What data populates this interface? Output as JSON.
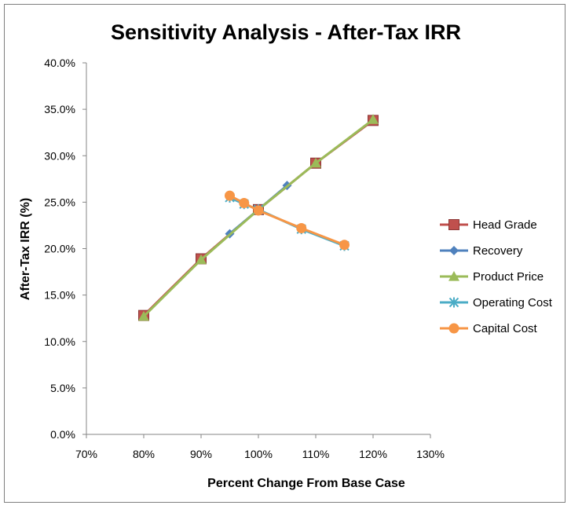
{
  "chart_data": {
    "type": "line",
    "title": "Sensitivity Analysis - After-Tax IRR",
    "xlabel": "Percent Change From Base Case",
    "ylabel": "After-Tax IRR (%)",
    "xlim": [
      70,
      130
    ],
    "ylim": [
      0,
      40
    ],
    "x_ticks": [
      70,
      80,
      90,
      100,
      110,
      120,
      130
    ],
    "x_tick_labels": [
      "70%",
      "80%",
      "90%",
      "100%",
      "110%",
      "120%",
      "130%"
    ],
    "y_ticks": [
      0,
      5,
      10,
      15,
      20,
      25,
      30,
      35,
      40
    ],
    "y_tick_labels": [
      "0.0%",
      "5.0%",
      "10.0%",
      "15.0%",
      "20.0%",
      "25.0%",
      "30.0%",
      "35.0%",
      "40.0%"
    ],
    "grid": false,
    "legend_position": "right",
    "series": [
      {
        "name": "Head Grade",
        "color": "#c0504d",
        "marker": "square",
        "x": [
          80,
          90,
          100,
          110,
          120
        ],
        "y": [
          12.8,
          18.9,
          24.2,
          29.2,
          33.8
        ]
      },
      {
        "name": "Recovery",
        "color": "#4f81bd",
        "marker": "diamond",
        "x": [
          95,
          100,
          105
        ],
        "y": [
          21.6,
          24.2,
          26.8
        ]
      },
      {
        "name": "Product Price",
        "color": "#9bbb59",
        "marker": "triangle",
        "x": [
          80,
          90,
          100,
          110,
          120
        ],
        "y": [
          12.7,
          18.8,
          24.2,
          29.2,
          33.9
        ]
      },
      {
        "name": "Operating Cost",
        "color": "#4bacc6",
        "marker": "star",
        "x": [
          95,
          97.5,
          100,
          107.5,
          115
        ],
        "y": [
          25.5,
          24.8,
          24.2,
          22.1,
          20.3
        ]
      },
      {
        "name": "Capital Cost",
        "color": "#f79646",
        "marker": "circle",
        "x": [
          95,
          97.5,
          100,
          107.5,
          115
        ],
        "y": [
          25.7,
          24.9,
          24.1,
          22.2,
          20.4
        ]
      }
    ]
  }
}
